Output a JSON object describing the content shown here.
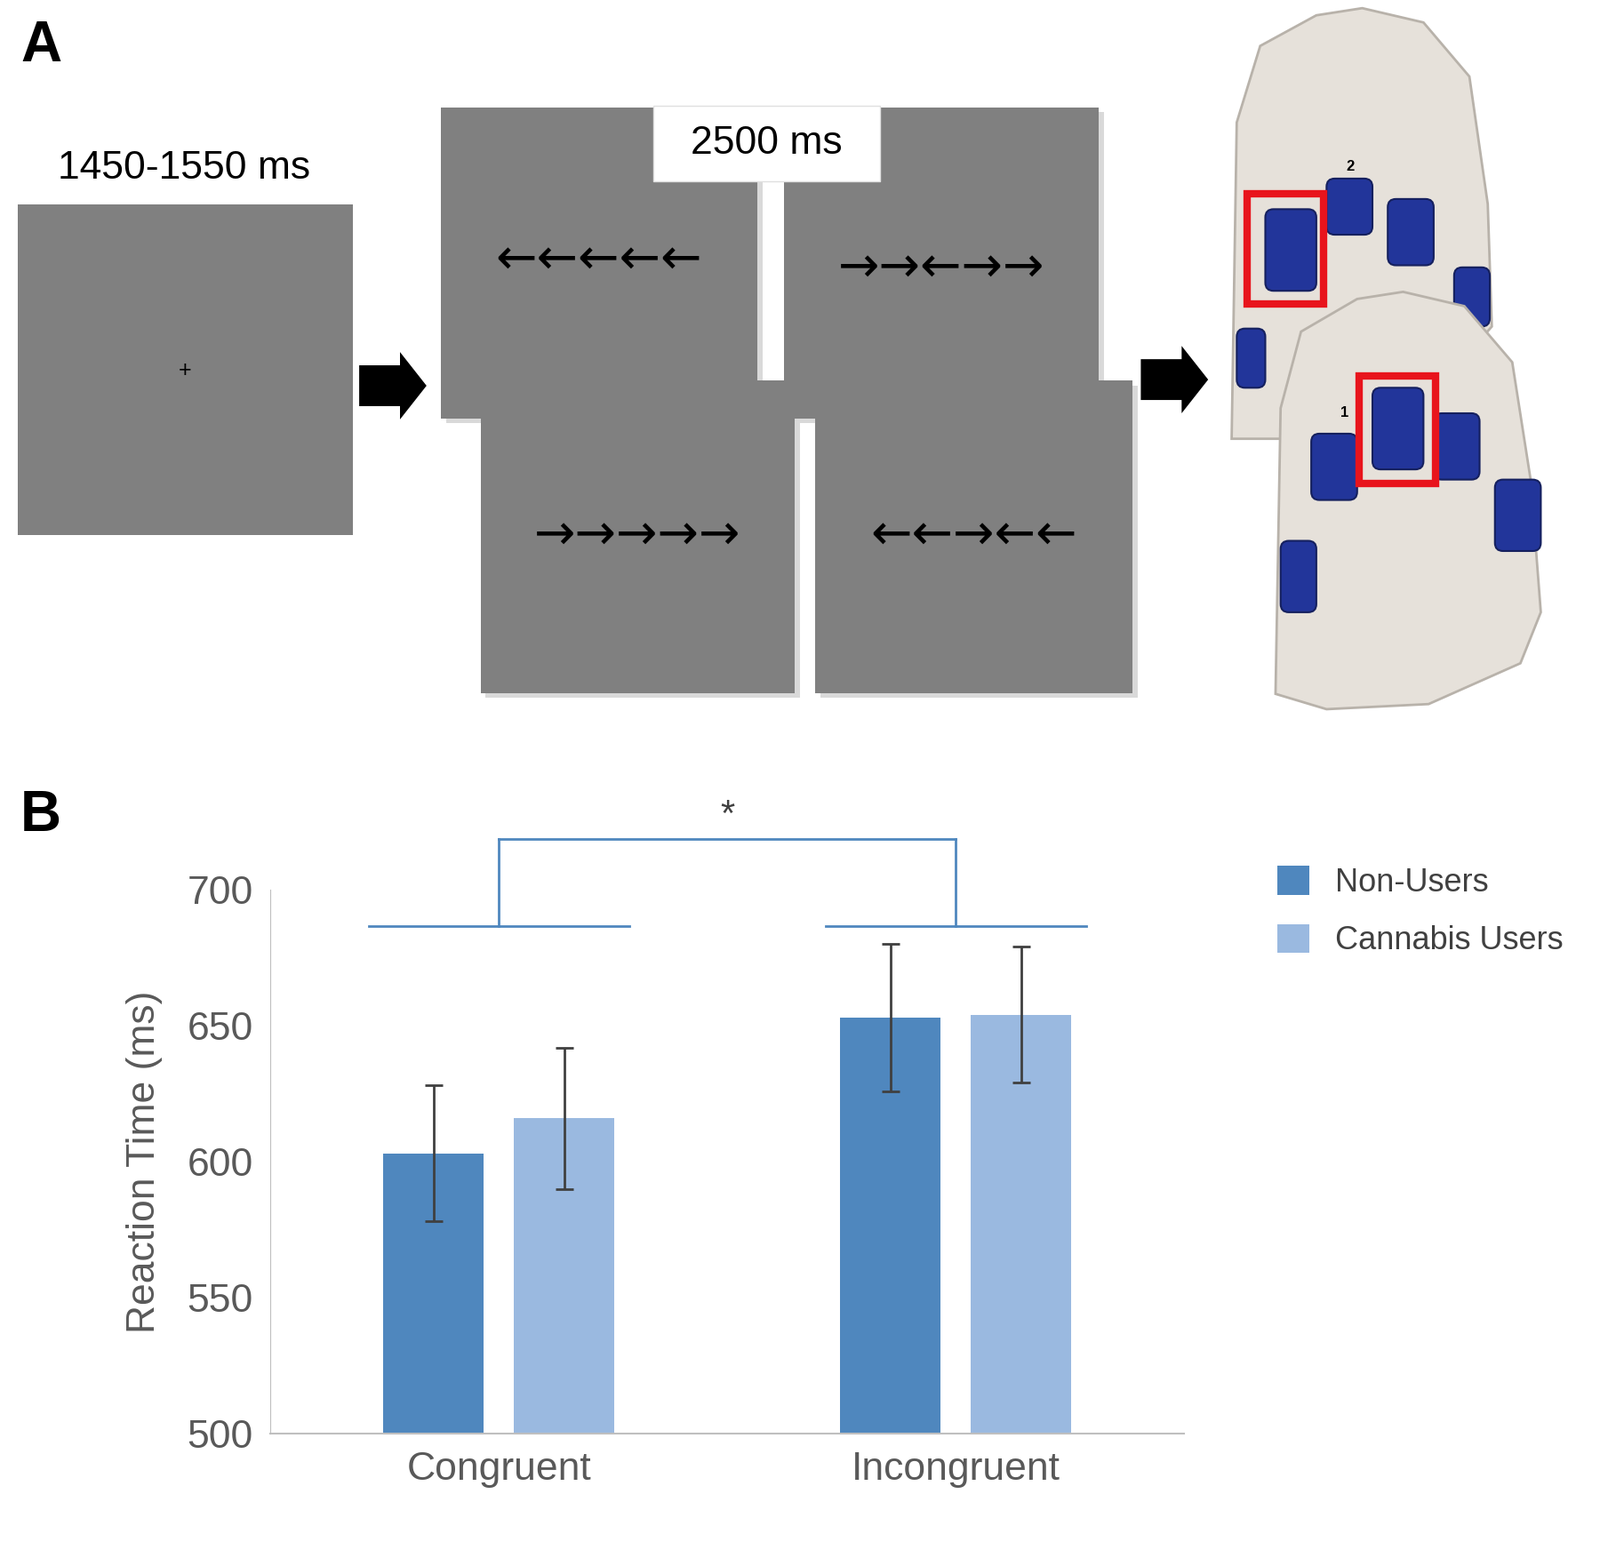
{
  "panel_a": {
    "label": "A",
    "fixation": {
      "duration": "1450-1550 ms",
      "symbol": "+"
    },
    "stimulus": {
      "duration": "2500 ms",
      "arrays": [
        "←←←←←",
        "→→←→→",
        "→→→→→",
        "←←→←←"
      ]
    },
    "response_pads": {
      "labels": [
        "2",
        "1"
      ]
    }
  },
  "chart_data": {
    "panel_label": "B",
    "type": "bar",
    "categories": [
      "Congruent",
      "Incongruent"
    ],
    "series": [
      {
        "name": "Non-Users",
        "color": "#4f87be",
        "values": [
          603,
          653
        ],
        "error": [
          25,
          27
        ]
      },
      {
        "name": "Cannabis Users",
        "color": "#9ab9e0",
        "values": [
          616,
          654
        ],
        "error": [
          26,
          25
        ]
      }
    ],
    "ylabel": "Reaction Time (ms)",
    "ylim": [
      500,
      700
    ],
    "yticks": [
      500,
      550,
      600,
      650,
      700
    ],
    "legend": "upper right",
    "significance": {
      "text": "*",
      "between": [
        "Congruent",
        "Incongruent"
      ]
    }
  }
}
